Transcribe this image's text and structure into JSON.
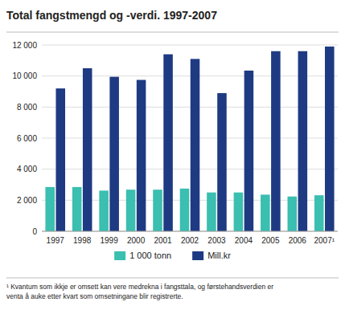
{
  "chart_data": {
    "type": "bar",
    "title": "Total fangstmengd og -verdi. 1997-2007",
    "categories": [
      "1997",
      "1998",
      "1999",
      "2000",
      "2001",
      "2002",
      "2003",
      "2004",
      "2005",
      "2006",
      "2007¹"
    ],
    "series": [
      {
        "name": "1 000 tonn",
        "color": "#3abfb0",
        "values": [
          2850,
          2850,
          2620,
          2680,
          2680,
          2750,
          2500,
          2500,
          2360,
          2240,
          2320
        ]
      },
      {
        "name": "Mill.kr",
        "color": "#1e3a82",
        "values": [
          9200,
          10500,
          9950,
          9750,
          11400,
          11100,
          8900,
          10350,
          11600,
          11600,
          11900
        ]
      }
    ],
    "ylim": [
      0,
      12000
    ],
    "yticks": [
      0,
      {
        "value": 2000,
        "label": "2 000"
      },
      {
        "value": 4000,
        "label": "4 000"
      },
      {
        "value": 6000,
        "label": "6 000"
      },
      {
        "value": 8000,
        "label": "8 000"
      },
      {
        "value": 10000,
        "label": "10 000"
      },
      {
        "value": 12000,
        "label": "12 000"
      }
    ],
    "grid": true,
    "legend": "bottom",
    "annotations": [
      "¹ Kvantum som ikkje er omsett kan vere medrekna i fangsttala, og førstehandsverdien er\nventa å auke etter kvart som omsetningane blir registrerte."
    ]
  }
}
